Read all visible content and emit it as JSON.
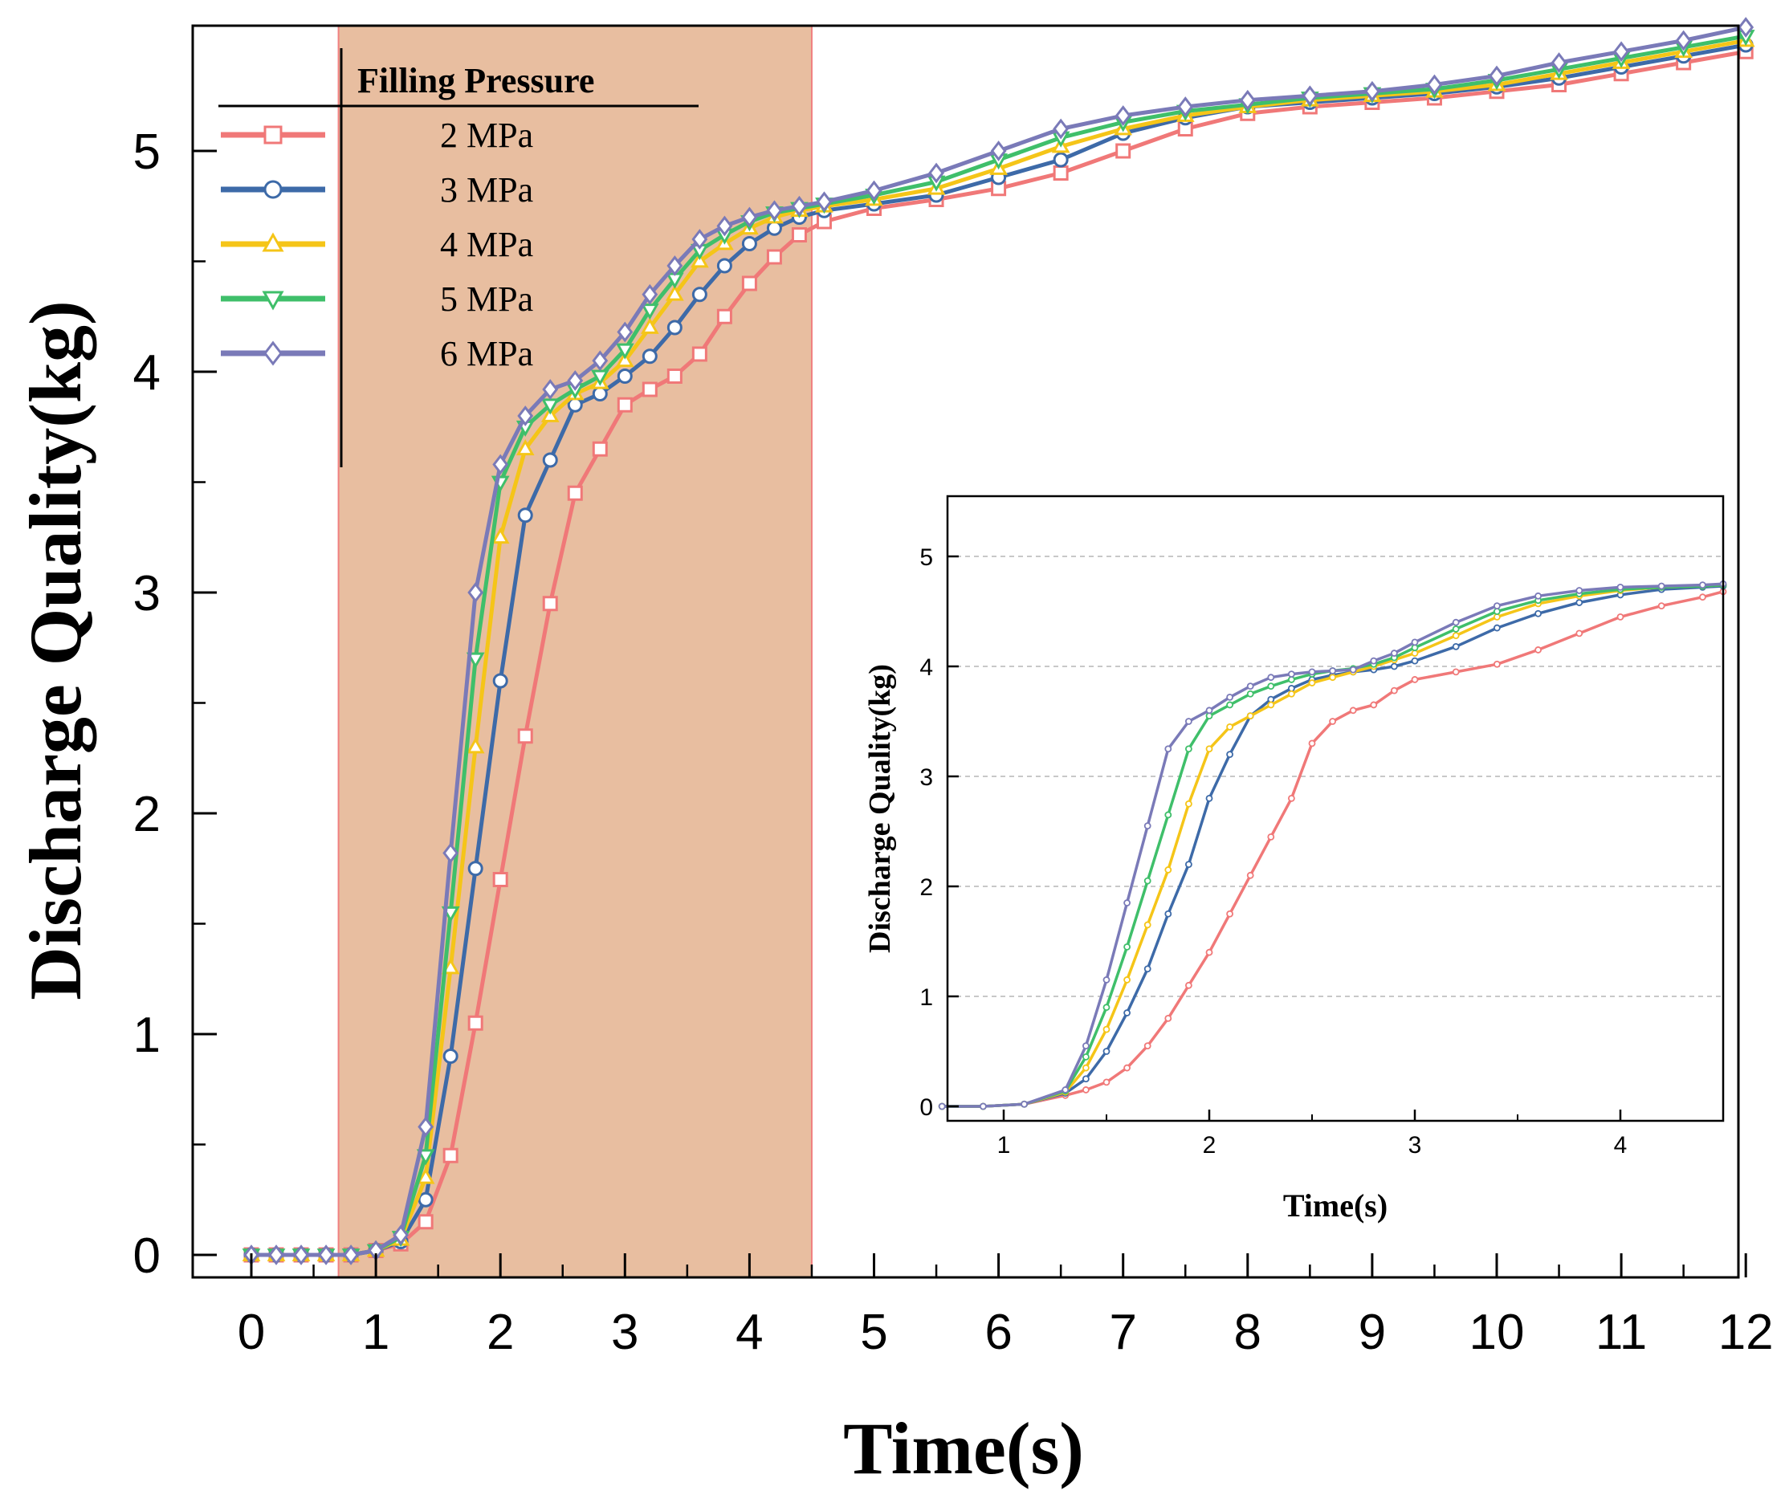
{
  "chart_data": [
    {
      "type": "line",
      "xlabel": "Time(s)",
      "ylabel": "Discharge Quality(kg)",
      "xlim": [
        -0.5,
        12
      ],
      "ylim": [
        -0.1,
        5.6
      ],
      "xticks": [
        0,
        1,
        2,
        3,
        4,
        5,
        6,
        7,
        8,
        9,
        10,
        11,
        12
      ],
      "yticks": [
        0,
        1,
        2,
        3,
        4,
        5
      ],
      "xtick_labels": [
        "0",
        "1",
        "2",
        "3",
        "4",
        "5",
        "6",
        "7",
        "8",
        "9",
        "10",
        "11",
        "12"
      ],
      "ytick_labels": [
        "0",
        "1",
        "2",
        "3",
        "4",
        "5"
      ],
      "highlight_region": {
        "x_from": 0.7,
        "x_to": 4.5,
        "color": "#e8bea0"
      },
      "legend": {
        "title": "Filling Pressure",
        "position": "top-left"
      },
      "series": [
        {
          "name": "2 MPa",
          "color": "#f07878",
          "marker": "square",
          "x": [
            0,
            0.2,
            0.4,
            0.6,
            0.8,
            1.0,
            1.2,
            1.4,
            1.6,
            1.8,
            2.0,
            2.2,
            2.4,
            2.6,
            2.8,
            3.0,
            3.2,
            3.4,
            3.6,
            3.8,
            4.0,
            4.2,
            4.4,
            4.6,
            5.0,
            5.5,
            6.0,
            6.5,
            7.0,
            7.5,
            8.0,
            8.5,
            9.0,
            9.5,
            10.0,
            10.5,
            11.0,
            11.5,
            12.0
          ],
          "y": [
            0,
            0,
            0,
            0,
            0,
            0.02,
            0.05,
            0.15,
            0.45,
            1.05,
            1.7,
            2.35,
            2.95,
            3.45,
            3.65,
            3.85,
            3.92,
            3.98,
            4.08,
            4.25,
            4.4,
            4.52,
            4.62,
            4.68,
            4.74,
            4.78,
            4.83,
            4.9,
            5.0,
            5.1,
            5.17,
            5.2,
            5.22,
            5.24,
            5.27,
            5.3,
            5.35,
            5.4,
            5.45
          ]
        },
        {
          "name": "3 MPa",
          "color": "#3d6aa8",
          "marker": "circle",
          "x": [
            0,
            0.2,
            0.4,
            0.6,
            0.8,
            1.0,
            1.2,
            1.4,
            1.6,
            1.8,
            2.0,
            2.2,
            2.4,
            2.6,
            2.8,
            3.0,
            3.2,
            3.4,
            3.6,
            3.8,
            4.0,
            4.2,
            4.4,
            4.6,
            5.0,
            5.5,
            6.0,
            6.5,
            7.0,
            7.5,
            8.0,
            8.5,
            9.0,
            9.5,
            10.0,
            10.5,
            11.0,
            11.5,
            12.0
          ],
          "y": [
            0,
            0,
            0,
            0,
            0,
            0.02,
            0.06,
            0.25,
            0.9,
            1.75,
            2.6,
            3.35,
            3.6,
            3.85,
            3.9,
            3.98,
            4.07,
            4.2,
            4.35,
            4.48,
            4.58,
            4.65,
            4.7,
            4.73,
            4.76,
            4.8,
            4.88,
            4.96,
            5.08,
            5.15,
            5.2,
            5.22,
            5.24,
            5.26,
            5.29,
            5.33,
            5.38,
            5.43,
            5.48
          ]
        },
        {
          "name": "4 MPa",
          "color": "#f5c518",
          "marker": "triangle-up",
          "x": [
            0,
            0.2,
            0.4,
            0.6,
            0.8,
            1.0,
            1.2,
            1.4,
            1.6,
            1.8,
            2.0,
            2.2,
            2.4,
            2.6,
            2.8,
            3.0,
            3.2,
            3.4,
            3.6,
            3.8,
            4.0,
            4.2,
            4.4,
            4.6,
            5.0,
            5.5,
            6.0,
            6.5,
            7.0,
            7.5,
            8.0,
            8.5,
            9.0,
            9.5,
            10.0,
            10.5,
            11.0,
            11.5,
            12.0
          ],
          "y": [
            0,
            0,
            0,
            0,
            0,
            0.02,
            0.07,
            0.35,
            1.3,
            2.3,
            3.25,
            3.65,
            3.8,
            3.9,
            3.95,
            4.05,
            4.2,
            4.35,
            4.5,
            4.58,
            4.65,
            4.7,
            4.73,
            4.75,
            4.78,
            4.83,
            4.92,
            5.02,
            5.1,
            5.16,
            5.2,
            5.23,
            5.25,
            5.27,
            5.3,
            5.35,
            5.4,
            5.45,
            5.5
          ]
        },
        {
          "name": "5 MPa",
          "color": "#3fbf6a",
          "marker": "triangle-down",
          "x": [
            0,
            0.2,
            0.4,
            0.6,
            0.8,
            1.0,
            1.2,
            1.4,
            1.6,
            1.8,
            2.0,
            2.2,
            2.4,
            2.6,
            2.8,
            3.0,
            3.2,
            3.4,
            3.6,
            3.8,
            4.0,
            4.2,
            4.4,
            4.6,
            5.0,
            5.5,
            6.0,
            6.5,
            7.0,
            7.5,
            8.0,
            8.5,
            9.0,
            9.5,
            10.0,
            10.5,
            11.0,
            11.5,
            12.0
          ],
          "y": [
            0,
            0,
            0,
            0,
            0,
            0.02,
            0.08,
            0.45,
            1.55,
            2.7,
            3.5,
            3.75,
            3.85,
            3.92,
            3.98,
            4.1,
            4.28,
            4.42,
            4.55,
            4.62,
            4.68,
            4.72,
            4.74,
            4.76,
            4.8,
            4.86,
            4.96,
            5.06,
            5.13,
            5.18,
            5.21,
            5.24,
            5.26,
            5.28,
            5.32,
            5.37,
            5.42,
            5.47,
            5.52
          ]
        },
        {
          "name": "6 MPa",
          "color": "#7a7ab8",
          "marker": "diamond",
          "x": [
            0,
            0.2,
            0.4,
            0.6,
            0.8,
            1.0,
            1.2,
            1.4,
            1.6,
            1.8,
            2.0,
            2.2,
            2.4,
            2.6,
            2.8,
            3.0,
            3.2,
            3.4,
            3.6,
            3.8,
            4.0,
            4.2,
            4.4,
            4.6,
            5.0,
            5.5,
            6.0,
            6.5,
            7.0,
            7.5,
            8.0,
            8.5,
            9.0,
            9.5,
            10.0,
            10.5,
            11.0,
            11.5,
            12.0
          ],
          "y": [
            0,
            0,
            0,
            0,
            0,
            0.02,
            0.09,
            0.58,
            1.82,
            3.0,
            3.58,
            3.8,
            3.92,
            3.96,
            4.05,
            4.18,
            4.35,
            4.48,
            4.6,
            4.66,
            4.7,
            4.73,
            4.75,
            4.77,
            4.82,
            4.9,
            5.0,
            5.1,
            5.16,
            5.2,
            5.23,
            5.25,
            5.27,
            5.3,
            5.34,
            5.4,
            5.45,
            5.5,
            5.56
          ]
        }
      ]
    },
    {
      "type": "line",
      "role": "inset",
      "xlabel": "Time(s)",
      "ylabel": "Discharge Quality(kg)",
      "xlim": [
        0.7,
        4.5
      ],
      "ylim": [
        -0.1,
        5.5
      ],
      "xticks": [
        1,
        2,
        3,
        4
      ],
      "yticks": [
        0,
        1,
        2,
        3,
        4,
        5
      ],
      "xtick_labels": [
        "1",
        "2",
        "3",
        "4"
      ],
      "ytick_labels": [
        "0",
        "1",
        "2",
        "3",
        "4",
        "5"
      ],
      "grid": "horizontal-dashed",
      "series": [
        {
          "name": "2 MPa",
          "color": "#f07878",
          "x": [
            0.7,
            0.9,
            1.1,
            1.3,
            1.4,
            1.5,
            1.6,
            1.7,
            1.8,
            1.9,
            2.0,
            2.1,
            2.2,
            2.3,
            2.4,
            2.5,
            2.6,
            2.7,
            2.8,
            2.9,
            3.0,
            3.2,
            3.4,
            3.6,
            3.8,
            4.0,
            4.2,
            4.4,
            4.5
          ],
          "y": [
            0,
            0,
            0.02,
            0.1,
            0.15,
            0.22,
            0.35,
            0.55,
            0.8,
            1.1,
            1.4,
            1.75,
            2.1,
            2.45,
            2.8,
            3.3,
            3.5,
            3.6,
            3.65,
            3.78,
            3.88,
            3.95,
            4.02,
            4.15,
            4.3,
            4.45,
            4.55,
            4.63,
            4.68
          ]
        },
        {
          "name": "3 MPa",
          "color": "#3d6aa8",
          "x": [
            0.7,
            0.9,
            1.1,
            1.3,
            1.4,
            1.5,
            1.6,
            1.7,
            1.8,
            1.9,
            2.0,
            2.1,
            2.2,
            2.3,
            2.4,
            2.5,
            2.6,
            2.7,
            2.8,
            2.9,
            3.0,
            3.2,
            3.4,
            3.6,
            3.8,
            4.0,
            4.2,
            4.4,
            4.5
          ],
          "y": [
            0,
            0,
            0.02,
            0.12,
            0.25,
            0.5,
            0.85,
            1.25,
            1.75,
            2.2,
            2.8,
            3.2,
            3.55,
            3.7,
            3.8,
            3.88,
            3.92,
            3.95,
            3.97,
            4.0,
            4.05,
            4.18,
            4.35,
            4.48,
            4.58,
            4.65,
            4.7,
            4.72,
            4.73
          ]
        },
        {
          "name": "4 MPa",
          "color": "#f5c518",
          "x": [
            0.7,
            0.9,
            1.1,
            1.3,
            1.4,
            1.5,
            1.6,
            1.7,
            1.8,
            1.9,
            2.0,
            2.1,
            2.2,
            2.3,
            2.4,
            2.5,
            2.6,
            2.7,
            2.8,
            2.9,
            3.0,
            3.2,
            3.4,
            3.6,
            3.8,
            4.0,
            4.2,
            4.4,
            4.5
          ],
          "y": [
            0,
            0,
            0.02,
            0.13,
            0.35,
            0.7,
            1.15,
            1.65,
            2.15,
            2.75,
            3.25,
            3.45,
            3.55,
            3.65,
            3.75,
            3.85,
            3.9,
            3.95,
            4.0,
            4.06,
            4.12,
            4.28,
            4.45,
            4.57,
            4.64,
            4.69,
            4.72,
            4.73,
            4.74
          ]
        },
        {
          "name": "5 MPa",
          "color": "#3fbf6a",
          "x": [
            0.7,
            0.9,
            1.1,
            1.3,
            1.4,
            1.5,
            1.6,
            1.7,
            1.8,
            1.9,
            2.0,
            2.1,
            2.2,
            2.3,
            2.4,
            2.5,
            2.6,
            2.7,
            2.8,
            2.9,
            3.0,
            3.2,
            3.4,
            3.6,
            3.8,
            4.0,
            4.2,
            4.4,
            4.5
          ],
          "y": [
            0,
            0,
            0.02,
            0.14,
            0.45,
            0.9,
            1.45,
            2.05,
            2.65,
            3.25,
            3.55,
            3.65,
            3.75,
            3.82,
            3.88,
            3.93,
            3.96,
            3.98,
            4.02,
            4.08,
            4.17,
            4.34,
            4.5,
            4.6,
            4.66,
            4.7,
            4.72,
            4.73,
            4.74
          ]
        },
        {
          "name": "6 MPa",
          "color": "#7a7ab8",
          "x": [
            0.7,
            0.9,
            1.1,
            1.3,
            1.4,
            1.5,
            1.6,
            1.7,
            1.8,
            1.9,
            2.0,
            2.1,
            2.2,
            2.3,
            2.4,
            2.5,
            2.6,
            2.7,
            2.8,
            2.9,
            3.0,
            3.2,
            3.4,
            3.6,
            3.8,
            4.0,
            4.2,
            4.4,
            4.5
          ],
          "y": [
            0,
            0,
            0.02,
            0.15,
            0.55,
            1.15,
            1.85,
            2.55,
            3.25,
            3.5,
            3.6,
            3.72,
            3.82,
            3.9,
            3.93,
            3.95,
            3.96,
            3.97,
            4.05,
            4.12,
            4.22,
            4.4,
            4.55,
            4.64,
            4.69,
            4.72,
            4.73,
            4.74,
            4.75
          ]
        }
      ]
    }
  ]
}
